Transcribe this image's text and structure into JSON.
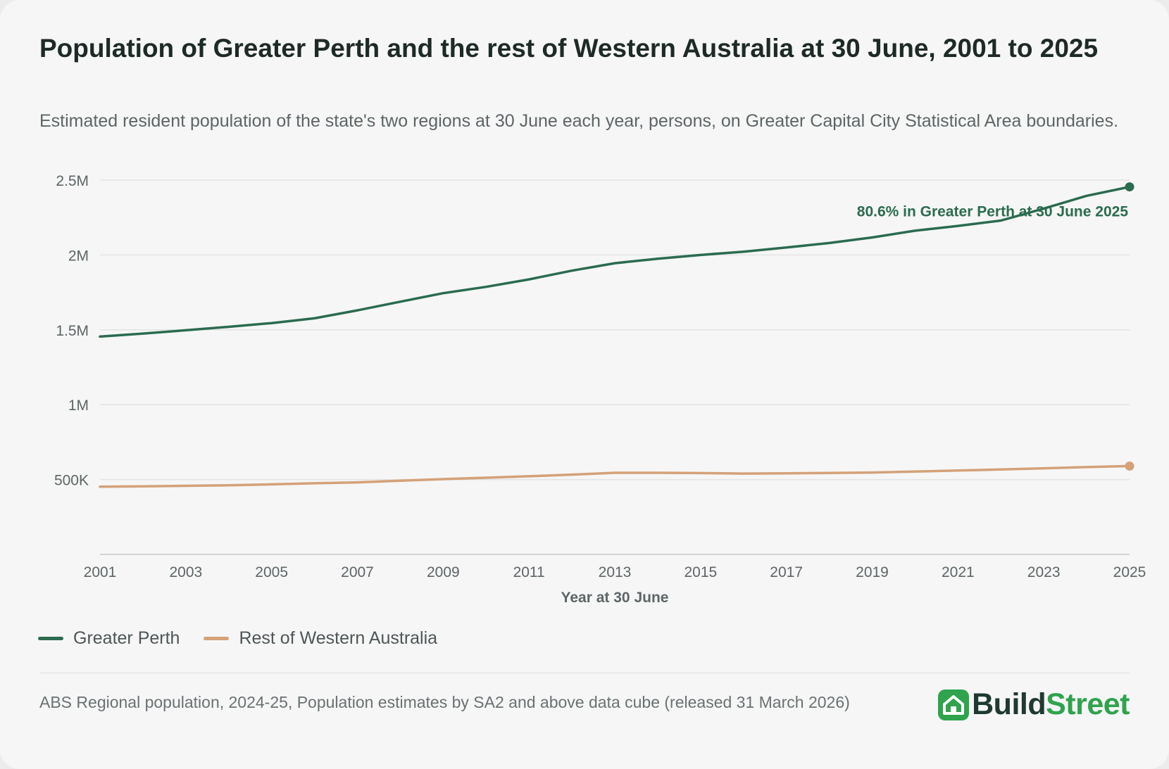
{
  "header": {
    "title": "Population of Greater Perth and the rest of Western Australia at 30 June, 2001 to 2025",
    "subtitle": "Estimated resident population of the state's two regions at 30 June each year, persons, on Greater Capital City Statistical Area boundaries."
  },
  "colors": {
    "greater_perth": "#2b6b4f",
    "rest_of_wa": "#d4a178",
    "grid": "#e3e3e3",
    "axis_text": "#5d6566",
    "brand_dark": "#1f3a30",
    "brand_green": "#2fa34d"
  },
  "chart_data": {
    "type": "line",
    "xlabel": "Year at 30 June",
    "ylabel": "",
    "xlim": [
      2001,
      2025
    ],
    "ylim": [
      0,
      2500000
    ],
    "y_ticks": [
      500000,
      1000000,
      1500000,
      2000000,
      2500000
    ],
    "y_tick_labels": [
      "500K",
      "1M",
      "1.5M",
      "2M",
      "2.5M"
    ],
    "x_ticks": [
      2001,
      2003,
      2005,
      2007,
      2009,
      2011,
      2013,
      2015,
      2017,
      2019,
      2021,
      2023,
      2025
    ],
    "x_tick_labels": [
      "2001",
      "2003",
      "2005",
      "2007",
      "2009",
      "2011",
      "2013",
      "2015",
      "2017",
      "2019",
      "2021",
      "2023",
      "2025"
    ],
    "grid": true,
    "legend_position": "bottom-left",
    "x": [
      2001,
      2002,
      2003,
      2004,
      2005,
      2006,
      2007,
      2008,
      2009,
      2010,
      2011,
      2012,
      2013,
      2014,
      2015,
      2016,
      2017,
      2018,
      2019,
      2020,
      2021,
      2022,
      2023,
      2024,
      2025
    ],
    "series": [
      {
        "name": "Greater Perth",
        "color": "#2b6b4f",
        "values": [
          1455000,
          1475000,
          1497000,
          1520000,
          1545000,
          1577000,
          1630000,
          1688000,
          1745000,
          1787000,
          1837000,
          1895000,
          1945000,
          1975000,
          2000000,
          2022000,
          2050000,
          2080000,
          2117000,
          2162000,
          2194000,
          2230000,
          2310000,
          2395000,
          2455000
        ]
      },
      {
        "name": "Rest of Western Australia",
        "color": "#d4a178",
        "values": [
          452000,
          455000,
          458000,
          462000,
          468000,
          475000,
          481000,
          492000,
          503000,
          512000,
          522000,
          533000,
          545000,
          545000,
          543000,
          540000,
          542000,
          544000,
          547000,
          553000,
          560000,
          567000,
          575000,
          583000,
          590000
        ]
      }
    ],
    "annotation": {
      "text": "80.6% in Greater Perth at 30 June 2025",
      "x": 2025,
      "series": "Greater Perth"
    }
  },
  "footer": {
    "source": "ABS Regional population, 2024-25, Population estimates by SA2 and above data cube (released 31 March 2026)",
    "brand_part1": "Build",
    "brand_part2": "Street",
    "brand_icon": "house-icon"
  }
}
